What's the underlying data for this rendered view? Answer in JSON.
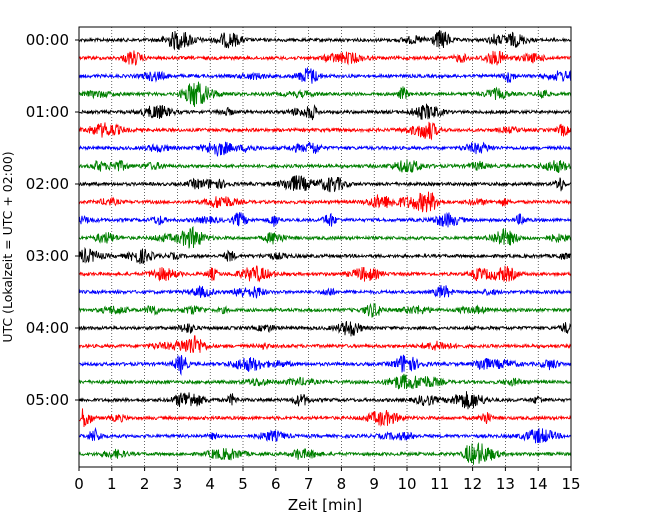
{
  "chart_data": {
    "type": "line",
    "title": "",
    "xlabel": "Zeit  [min]",
    "ylabel": "UTC (Lokalzeit = UTC + 02:00)",
    "xlim": [
      0,
      15
    ],
    "x_ticks": [
      "0",
      "1",
      "2",
      "3",
      "4",
      "5",
      "6",
      "7",
      "8",
      "9",
      "10",
      "11",
      "12",
      "13",
      "14",
      "15"
    ],
    "y_tick_labels": [
      "00:00",
      "01:00",
      "02:00",
      "03:00",
      "04:00",
      "05:00"
    ],
    "trace_interval_min": 15,
    "trace_count": 24,
    "color_cycle": [
      "#000000",
      "#ff0000",
      "#0000ff",
      "#008000"
    ],
    "grid": "vertical dotted",
    "legend": "none"
  }
}
